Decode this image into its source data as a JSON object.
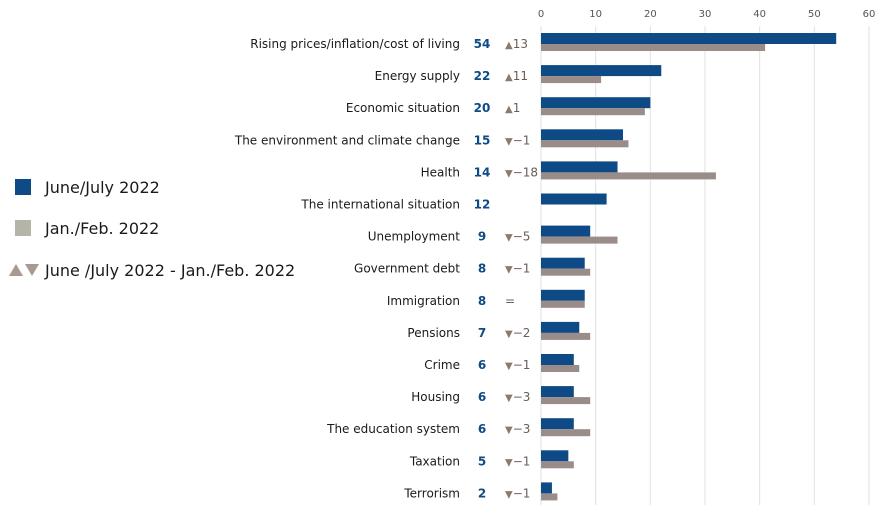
{
  "chart_data": {
    "type": "bar",
    "orientation": "horizontal",
    "categories": [
      "Rising prices/inflation/cost of living",
      "Energy supply",
      "Economic situation",
      "The environment and climate change",
      "Health",
      "The international situation",
      "Unemployment",
      "Government debt",
      "Immigration",
      "Pensions",
      "Crime",
      "Housing",
      "The education system",
      "Taxation",
      "Terrorism"
    ],
    "series": [
      {
        "name": "June/July 2022",
        "values": [
          54,
          22,
          20,
          15,
          14,
          12,
          9,
          8,
          8,
          7,
          6,
          6,
          6,
          5,
          2
        ]
      },
      {
        "name": "Jan./Feb. 2022",
        "values": [
          41,
          11,
          19,
          16,
          32,
          null,
          14,
          9,
          8,
          9,
          7,
          9,
          9,
          6,
          3
        ]
      }
    ],
    "value_labels": [
      "54",
      "22",
      "20",
      "15",
      "14",
      "12",
      "9",
      "8",
      "8",
      "7",
      "6",
      "6",
      "6",
      "5",
      "2"
    ],
    "change_labels": [
      "▲13",
      "▲11",
      "▲1",
      "▼−1",
      "▼−18",
      "",
      "▼−5",
      "▼−1",
      "=",
      "▼−2",
      "▼−1",
      "▼−3",
      "▼−3",
      "▼−1",
      "▼−1"
    ],
    "x_ticks": [
      "0",
      "10",
      "20",
      "30",
      "40",
      "50",
      "60"
    ],
    "xlim": [
      0,
      60
    ],
    "grid": true,
    "legend_position": "left",
    "legend": [
      {
        "label": "June/July 2022",
        "symbol": "square",
        "color": "#0e4b86"
      },
      {
        "label": "Jan./Feb. 2022",
        "symbol": "square",
        "color": "#b4b4a8"
      },
      {
        "label": "June /July 2022 - Jan./Feb. 2022",
        "symbol": "triangles",
        "color": "#a89a90"
      }
    ],
    "colors": {
      "current": "#0e4b86",
      "previous": "#9a8c88",
      "value_text": "#0e4b86",
      "change_text": "#6b5d55",
      "change_marker": "#8b7a70",
      "grid": "#e2e2e2"
    }
  }
}
